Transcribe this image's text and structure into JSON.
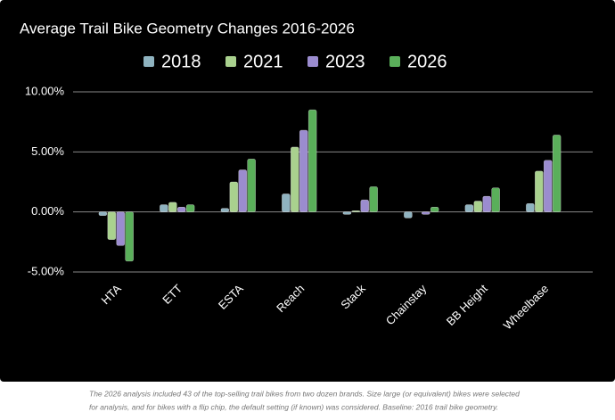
{
  "chart_data": {
    "type": "bar",
    "title": "Average Trail Bike Geometry Changes 2016-2026",
    "categories": [
      "HTA",
      "ETT",
      "ESTA",
      "Reach",
      "Stack",
      "Chainstay",
      "BB Height",
      "Wheelbase"
    ],
    "series": [
      {
        "name": "2018",
        "color": "#8fb3c0",
        "values": [
          -0.3,
          0.6,
          0.3,
          1.5,
          -0.2,
          -0.5,
          0.6,
          0.7
        ]
      },
      {
        "name": "2021",
        "color": "#a9d18e",
        "values": [
          -2.3,
          0.8,
          2.5,
          5.4,
          0.1,
          0.0,
          0.9,
          3.4
        ]
      },
      {
        "name": "2023",
        "color": "#9b8ccf",
        "values": [
          -2.8,
          0.4,
          3.5,
          6.8,
          1.0,
          -0.2,
          1.3,
          4.3
        ]
      },
      {
        "name": "2026",
        "color": "#5aaf5a",
        "values": [
          -4.1,
          0.6,
          4.4,
          8.5,
          2.1,
          0.4,
          2.0,
          6.4
        ]
      }
    ],
    "ylim": [
      -5,
      10
    ],
    "yticks": [
      {
        "value": -5,
        "label": "-5.00%"
      },
      {
        "value": 0,
        "label": "0.00%"
      },
      {
        "value": 5,
        "label": "5.00%"
      },
      {
        "value": 10,
        "label": "10.00%"
      }
    ],
    "grid": true,
    "legend": "top",
    "notes": [
      "The 2026 analysis included 43 of the top-selling trail bikes from two dozen brands. Size large (or equivalent) bikes were selected",
      "for analysis, and for bikes with a flip chip, the default setting (if known) was considered. Baseline: 2016 trail bike geometry."
    ]
  }
}
